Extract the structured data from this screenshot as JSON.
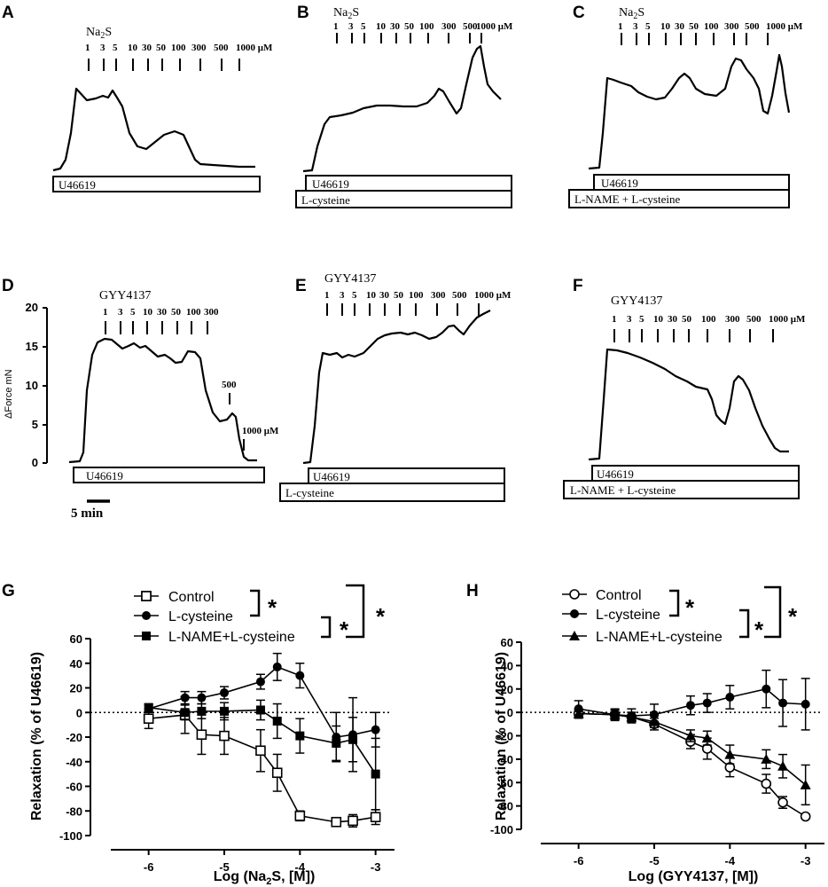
{
  "figure": {
    "panels": [
      {
        "letter": "A",
        "drug": "Na2S",
        "conc": [
          "1",
          "3",
          "5",
          "10",
          "30",
          "50",
          "100",
          "300",
          "500",
          "1000 μM"
        ],
        "bars": [
          "U46619"
        ]
      },
      {
        "letter": "B",
        "drug": "Na2S",
        "conc": [
          "1",
          "3",
          "5",
          "10",
          "30",
          "50",
          "100",
          "300",
          "500",
          "1000 μM"
        ],
        "bars": [
          "U46619",
          "L-cysteine"
        ]
      },
      {
        "letter": "C",
        "drug": "Na2S",
        "conc": [
          "1",
          "3",
          "5",
          "10",
          "30",
          "50",
          "100",
          "300",
          "500",
          "1000 μM"
        ],
        "bars": [
          "U46619",
          "L-NAME + L-cysteine"
        ]
      },
      {
        "letter": "D",
        "drug": "GYY4137",
        "conc": [
          "1",
          "3",
          "5",
          "10",
          "30",
          "50",
          "100",
          "300",
          "500",
          "1000 μM"
        ],
        "bars": [
          "U46619"
        ],
        "ylabel": "ΔForce mN",
        "yticks": [
          "0",
          "5",
          "10",
          "15",
          "20"
        ],
        "scale_label": "5 min"
      },
      {
        "letter": "E",
        "drug": "GYY4137",
        "conc": [
          "1",
          "3",
          "5",
          "10",
          "30",
          "50",
          "100",
          "300",
          "500",
          "1000 μM"
        ],
        "bars": [
          "U46619",
          "L-cysteine"
        ]
      },
      {
        "letter": "F",
        "drug": "GYY4137",
        "conc": [
          "1",
          "3",
          "5",
          "10",
          "30",
          "50",
          "100",
          "300",
          "500",
          "1000 μM"
        ],
        "bars": [
          "U46619",
          "L-NAME + L-cysteine"
        ]
      }
    ]
  },
  "chart_data": [
    {
      "panel": "G",
      "type": "line",
      "xlabel": "Log (Na2S, [M])",
      "ylabel": "Relaxation (% of U46619)",
      "xlim": [
        -6.5,
        -2.75
      ],
      "ylim": [
        -100,
        60
      ],
      "xticks": [
        "-6",
        "-5",
        "-4",
        "-3"
      ],
      "yticks": [
        "60",
        "40",
        "20",
        "0",
        "-20",
        "-40",
        "-60",
        "-80",
        "-100"
      ],
      "x": [
        -6,
        -5.52,
        -5.3,
        -5,
        -4.52,
        -4.3,
        -4,
        -3.52,
        -3.3,
        -3
      ],
      "significance": "*",
      "series": [
        {
          "name": "Control",
          "marker": "open-square",
          "values": [
            -5,
            -2,
            -18,
            -19,
            -31,
            -49,
            -84,
            -89,
            -88,
            -85
          ],
          "errors": [
            8,
            15,
            16,
            15,
            17,
            15,
            4,
            2,
            5,
            6
          ]
        },
        {
          "name": "L-cysteine",
          "marker": "filled-circle",
          "values": [
            3,
            12,
            12,
            16,
            25,
            37,
            30,
            -20,
            -18,
            -14
          ],
          "errors": [
            3,
            5,
            5,
            5,
            6,
            11,
            10,
            20,
            30,
            14
          ]
        },
        {
          "name": "L-NAME+L-cysteine",
          "marker": "filled-square",
          "values": [
            4,
            0,
            1,
            1,
            2,
            -7,
            -19,
            -25,
            -22,
            -50
          ],
          "errors": [
            3,
            6,
            6,
            7,
            8,
            14,
            14,
            14,
            18,
            29
          ]
        }
      ]
    },
    {
      "panel": "H",
      "type": "line",
      "xlabel": "Log (GYY4137, [M])",
      "ylabel": "Relaxation (% of U46619)",
      "xlim": [
        -6.5,
        -2.75
      ],
      "ylim": [
        -100,
        60
      ],
      "xticks": [
        "-6",
        "-5",
        "-4",
        "-3"
      ],
      "yticks": [
        "60",
        "40",
        "20",
        "0",
        "-20",
        "-40",
        "-60",
        "-80",
        "-100"
      ],
      "x": [
        -6,
        -5.52,
        -5.3,
        -5,
        -4.52,
        -4.3,
        -4,
        -3.52,
        -3.3,
        -3
      ],
      "significance": "*",
      "series": [
        {
          "name": "Control",
          "marker": "open-circle",
          "values": [
            -1,
            -2,
            -4,
            -10,
            -25,
            -31,
            -47,
            -61,
            -77,
            -89
          ],
          "errors": [
            3,
            4,
            4,
            5,
            6,
            9,
            8,
            8,
            5,
            2
          ]
        },
        {
          "name": "L-cysteine",
          "marker": "filled-circle",
          "values": [
            3,
            -2,
            -3,
            -2,
            6,
            8,
            13,
            20,
            8,
            7
          ],
          "errors": [
            7,
            5,
            6,
            9,
            8,
            8,
            10,
            16,
            20,
            22
          ]
        },
        {
          "name": "L-NAME+L-cysteine",
          "marker": "filled-triangle",
          "values": [
            -1,
            -2,
            -4,
            -8,
            -20,
            -22,
            -36,
            -40,
            -46,
            -62
          ],
          "errors": [
            4,
            4,
            4,
            5,
            5,
            6,
            8,
            8,
            10,
            17
          ]
        }
      ]
    }
  ]
}
